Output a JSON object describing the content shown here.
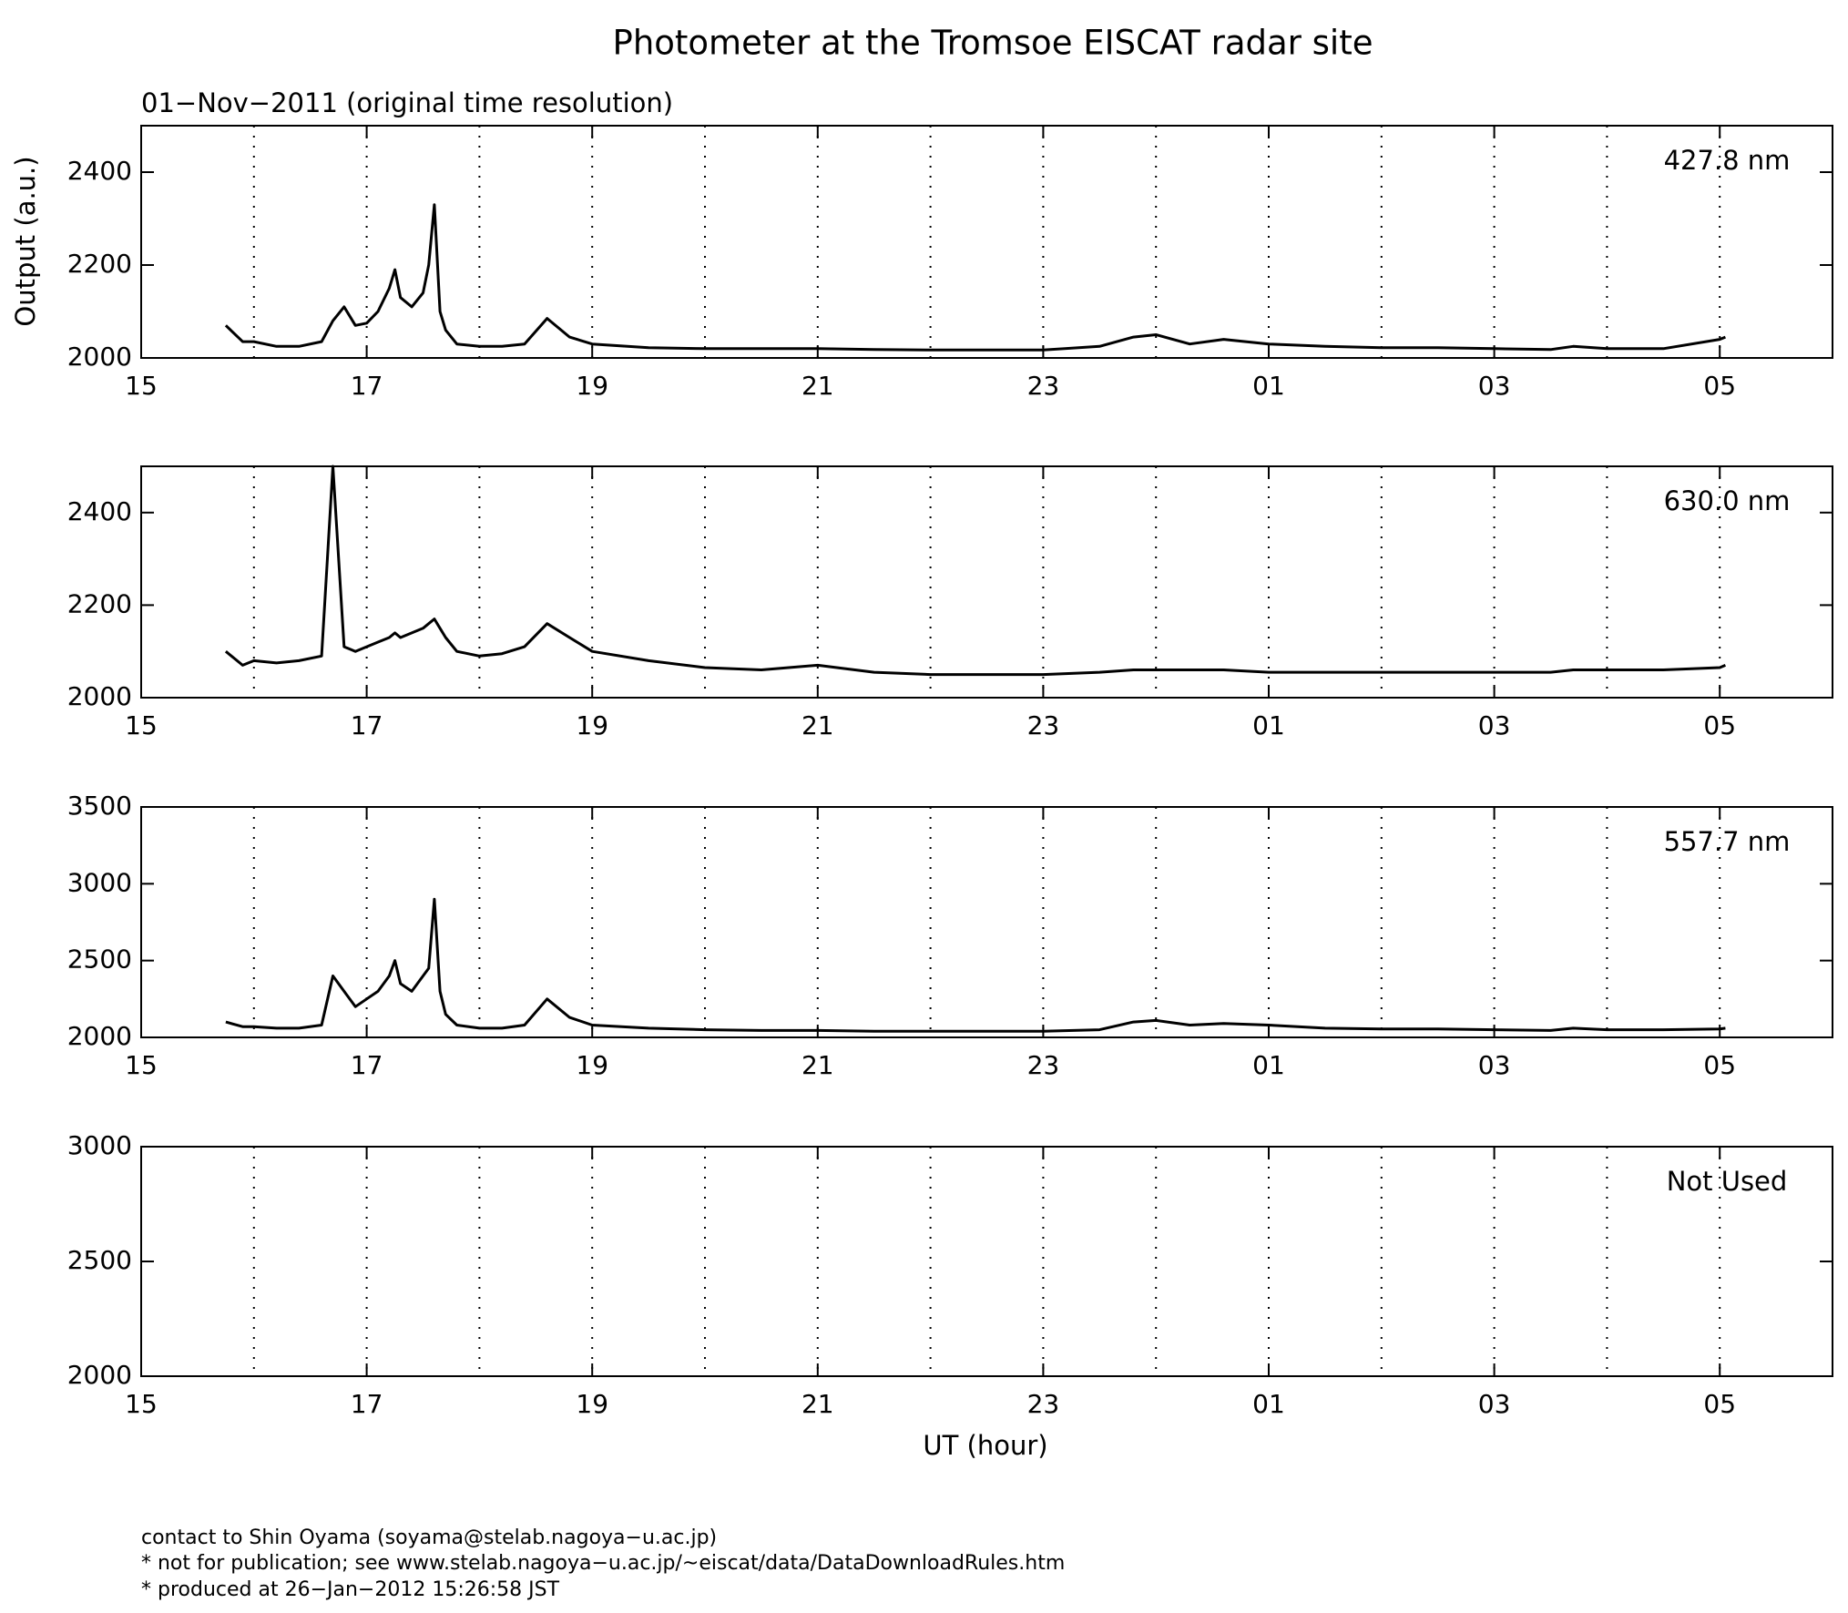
{
  "title": "Photometer at the Tromsoe EISCAT radar site",
  "subtitle": "01−Nov−2011 (original time resolution)",
  "ylabel": "Output (a.u.)",
  "xlabel": "UT (hour)",
  "footer": [
    "contact to Shin Oyama (soyama@stelab.nagoya−u.ac.jp)",
    "* not for publication; see www.stelab.nagoya−u.ac.jp/~eiscat/data/DataDownloadRules.htm",
    "* produced at 26−Jan−2012 15:26:58 JST"
  ],
  "chart_data": [
    {
      "type": "line",
      "annotation": "427.8 nm",
      "color": "#000000",
      "x": [
        15.75,
        15.9,
        16.0,
        16.2,
        16.4,
        16.6,
        16.7,
        16.8,
        16.9,
        17.0,
        17.1,
        17.2,
        17.25,
        17.3,
        17.4,
        17.5,
        17.55,
        17.6,
        17.65,
        17.7,
        17.8,
        18.0,
        18.2,
        18.4,
        18.6,
        18.8,
        19.0,
        19.5,
        20.0,
        20.5,
        21.0,
        21.5,
        22.0,
        22.5,
        23.0,
        23.5,
        23.8,
        24.0,
        24.3,
        24.6,
        25.0,
        25.5,
        26.0,
        26.5,
        27.0,
        27.5,
        27.7,
        28.0,
        28.5,
        29.0,
        29.05
      ],
      "values": [
        2070,
        2035,
        2035,
        2025,
        2025,
        2035,
        2080,
        2110,
        2070,
        2075,
        2100,
        2150,
        2190,
        2130,
        2110,
        2140,
        2200,
        2330,
        2100,
        2060,
        2030,
        2025,
        2025,
        2030,
        2085,
        2045,
        2030,
        2022,
        2020,
        2020,
        2020,
        2018,
        2017,
        2017,
        2017,
        2025,
        2045,
        2050,
        2030,
        2040,
        2030,
        2025,
        2022,
        2022,
        2020,
        2018,
        2025,
        2020,
        2020,
        2040,
        2045
      ],
      "xlim": [
        15,
        30
      ],
      "ylim": [
        2000,
        2500
      ],
      "yticks": [
        2000,
        2200,
        2400
      ],
      "xticks": [
        15,
        17,
        19,
        21,
        23,
        {
          "value": 25,
          "label": "01"
        },
        {
          "value": 27,
          "label": "03"
        },
        {
          "value": 29,
          "label": "05"
        }
      ],
      "minor_xticks": [
        16,
        18,
        20,
        22,
        24,
        26,
        28,
        30
      ],
      "grid": "dotted"
    },
    {
      "type": "line",
      "annotation": "630.0 nm",
      "color": "#000000",
      "x": [
        15.75,
        15.9,
        16.0,
        16.2,
        16.4,
        16.6,
        16.7,
        16.8,
        16.9,
        17.0,
        17.1,
        17.2,
        17.25,
        17.3,
        17.4,
        17.5,
        17.55,
        17.6,
        17.65,
        17.7,
        17.8,
        18.0,
        18.2,
        18.4,
        18.6,
        18.8,
        19.0,
        19.5,
        20.0,
        20.5,
        21.0,
        21.5,
        22.0,
        22.5,
        23.0,
        23.5,
        23.8,
        24.0,
        24.3,
        24.6,
        25.0,
        25.5,
        26.0,
        26.5,
        27.0,
        27.5,
        27.7,
        28.0,
        28.5,
        29.0,
        29.05
      ],
      "values": [
        2100,
        2070,
        2080,
        2075,
        2080,
        2090,
        2500,
        2110,
        2100,
        2110,
        2120,
        2130,
        2140,
        2130,
        2140,
        2150,
        2160,
        2170,
        2150,
        2130,
        2100,
        2090,
        2095,
        2110,
        2160,
        2130,
        2100,
        2080,
        2065,
        2060,
        2070,
        2055,
        2050,
        2050,
        2050,
        2055,
        2060,
        2060,
        2060,
        2060,
        2055,
        2055,
        2055,
        2055,
        2055,
        2055,
        2060,
        2060,
        2060,
        2065,
        2070
      ],
      "xlim": [
        15,
        30
      ],
      "ylim": [
        2000,
        2500
      ],
      "yticks": [
        2000,
        2200,
        2400
      ],
      "xticks": [
        15,
        17,
        19,
        21,
        23,
        {
          "value": 25,
          "label": "01"
        },
        {
          "value": 27,
          "label": "03"
        },
        {
          "value": 29,
          "label": "05"
        }
      ],
      "minor_xticks": [
        16,
        18,
        20,
        22,
        24,
        26,
        28,
        30
      ],
      "grid": "dotted"
    },
    {
      "type": "line",
      "annotation": "557.7 nm",
      "color": "#000000",
      "x": [
        15.75,
        15.9,
        16.0,
        16.2,
        16.4,
        16.6,
        16.7,
        16.8,
        16.9,
        17.0,
        17.1,
        17.2,
        17.25,
        17.3,
        17.4,
        17.5,
        17.55,
        17.6,
        17.65,
        17.7,
        17.8,
        18.0,
        18.2,
        18.4,
        18.6,
        18.8,
        19.0,
        19.5,
        20.0,
        20.5,
        21.0,
        21.5,
        22.0,
        22.5,
        23.0,
        23.5,
        23.8,
        24.0,
        24.3,
        24.6,
        25.0,
        25.5,
        26.0,
        26.5,
        27.0,
        27.5,
        27.7,
        28.0,
        28.5,
        29.0,
        29.05
      ],
      "values": [
        2100,
        2070,
        2070,
        2060,
        2060,
        2080,
        2400,
        2300,
        2200,
        2250,
        2300,
        2400,
        2500,
        2350,
        2300,
        2400,
        2450,
        2900,
        2300,
        2150,
        2080,
        2060,
        2060,
        2080,
        2250,
        2130,
        2080,
        2060,
        2050,
        2045,
        2045,
        2040,
        2040,
        2040,
        2040,
        2050,
        2100,
        2110,
        2080,
        2090,
        2080,
        2060,
        2055,
        2055,
        2050,
        2045,
        2060,
        2050,
        2050,
        2055,
        2060
      ],
      "xlim": [
        15,
        30
      ],
      "ylim": [
        2000,
        3500
      ],
      "yticks": [
        2000,
        2500,
        3000,
        3500
      ],
      "xticks": [
        15,
        17,
        19,
        21,
        23,
        {
          "value": 25,
          "label": "01"
        },
        {
          "value": 27,
          "label": "03"
        },
        {
          "value": 29,
          "label": "05"
        }
      ],
      "minor_xticks": [
        16,
        18,
        20,
        22,
        24,
        26,
        28,
        30
      ],
      "grid": "dotted"
    },
    {
      "type": "line",
      "annotation": "Not Used",
      "color": "#000000",
      "x": [],
      "values": [],
      "xlim": [
        15,
        30
      ],
      "ylim": [
        2000,
        3000
      ],
      "yticks": [
        2000,
        2500,
        3000
      ],
      "xticks": [
        15,
        17,
        19,
        21,
        23,
        {
          "value": 25,
          "label": "01"
        },
        {
          "value": 27,
          "label": "03"
        },
        {
          "value": 29,
          "label": "05"
        }
      ],
      "minor_xticks": [
        16,
        18,
        20,
        22,
        24,
        26,
        28,
        30
      ],
      "grid": "dotted"
    }
  ]
}
